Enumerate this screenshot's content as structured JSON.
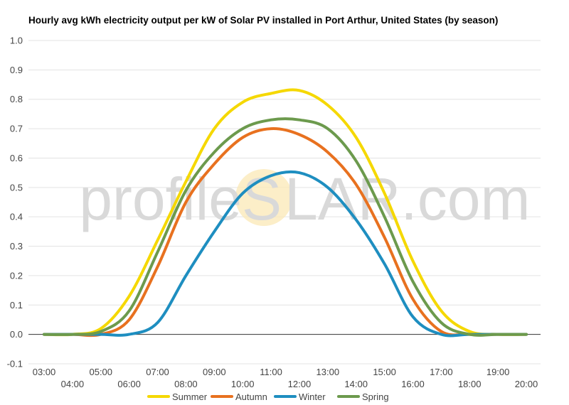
{
  "watermark": {
    "left": "profile",
    "s": "S",
    "right": "LAR.com"
  },
  "chart_data": {
    "type": "line",
    "title": "Hourly avg kWh electricity output per kW of Solar PV installed in Port Arthur, United States (by season)",
    "xlabel": "",
    "ylabel": "",
    "x": [
      "03:00",
      "04:00",
      "05:00",
      "06:00",
      "07:00",
      "08:00",
      "09:00",
      "10:00",
      "11:00",
      "12:00",
      "13:00",
      "14:00",
      "15:00",
      "16:00",
      "17:00",
      "18:00",
      "19:00",
      "20:00"
    ],
    "ylim": [
      -0.1,
      1.0
    ],
    "yticks": [
      "-0.1",
      "0.0",
      "0.1",
      "0.2",
      "0.3",
      "0.4",
      "0.5",
      "0.6",
      "0.7",
      "0.8",
      "0.9",
      "1.0"
    ],
    "grid": true,
    "legend": "bottom",
    "series": [
      {
        "name": "Summer",
        "color": "#f5d800",
        "values": [
          0.0,
          0.0,
          0.02,
          0.13,
          0.32,
          0.52,
          0.7,
          0.79,
          0.82,
          0.83,
          0.78,
          0.67,
          0.48,
          0.25,
          0.08,
          0.01,
          0.0,
          0.0
        ]
      },
      {
        "name": "Autumn",
        "color": "#e8711f",
        "values": [
          0.0,
          0.0,
          0.0,
          0.05,
          0.23,
          0.45,
          0.58,
          0.67,
          0.7,
          0.68,
          0.62,
          0.51,
          0.33,
          0.12,
          0.01,
          0.0,
          0.0,
          0.0
        ]
      },
      {
        "name": "Winter",
        "color": "#1e8ec0",
        "values": [
          0.0,
          0.0,
          0.0,
          0.0,
          0.04,
          0.2,
          0.35,
          0.48,
          0.54,
          0.55,
          0.5,
          0.39,
          0.24,
          0.06,
          0.0,
          0.0,
          0.0,
          0.0
        ]
      },
      {
        "name": "Spring",
        "color": "#6c9a4d",
        "values": [
          0.0,
          0.0,
          0.01,
          0.08,
          0.28,
          0.49,
          0.62,
          0.7,
          0.73,
          0.73,
          0.7,
          0.59,
          0.4,
          0.18,
          0.04,
          0.0,
          0.0,
          0.0
        ]
      }
    ]
  }
}
